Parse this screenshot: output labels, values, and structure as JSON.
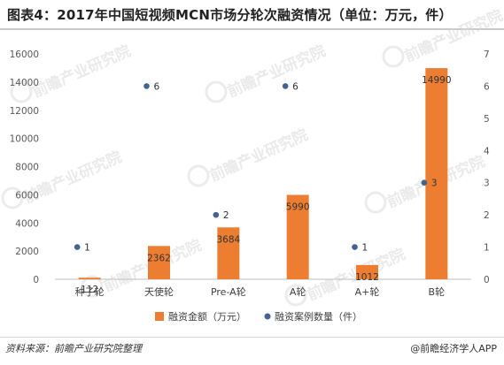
{
  "title": "图表4：2017年中国短视频MCN市场分轮次融资情况（单位：万元，件）",
  "source": "资料来源：前瞻产业研究院整理",
  "credit": "@前瞻经济学人APP",
  "watermark": "前瞻产业研究院",
  "chart_data": {
    "type": "bar",
    "categories": [
      "种子轮",
      "天使轮",
      "Pre-A轮",
      "A轮",
      "A+轮",
      "B轮"
    ],
    "series": [
      {
        "name": "融资金额（万元）",
        "kind": "bar",
        "axis": "left",
        "color": "#ed7d31",
        "values": [
          112,
          2362,
          3684,
          5990,
          1012,
          14990
        ]
      },
      {
        "name": "融资案例数量（件）",
        "kind": "scatter",
        "axis": "right",
        "color": "#44638f",
        "values": [
          1,
          6,
          2,
          6,
          1,
          3
        ]
      }
    ],
    "y_left": {
      "min": 0,
      "max": 16000,
      "ticks": [
        0,
        2000,
        4000,
        6000,
        8000,
        10000,
        12000,
        14000,
        16000
      ]
    },
    "y_right": {
      "min": 0,
      "max": 7,
      "ticks": [
        0,
        1,
        2,
        3,
        4,
        5,
        6,
        7
      ]
    },
    "grid": false,
    "legend": "bottom"
  }
}
